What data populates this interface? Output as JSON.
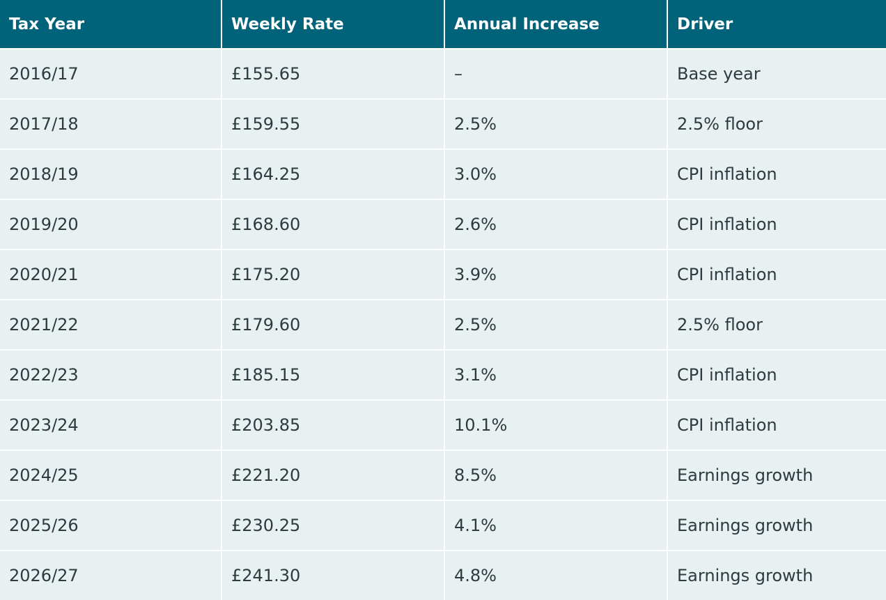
{
  "table": {
    "headers": [
      "Tax Year",
      "Weekly Rate",
      "Annual Increase",
      "Driver"
    ],
    "rows": [
      [
        "2016/17",
        "£155.65",
        "–",
        "Base year"
      ],
      [
        "2017/18",
        "£159.55",
        "2.5%",
        "2.5% floor"
      ],
      [
        "2018/19",
        "£164.25",
        "3.0%",
        "CPI inflation"
      ],
      [
        "2019/20",
        "£168.60",
        "2.6%",
        "CPI inflation"
      ],
      [
        "2020/21",
        "£175.20",
        "3.9%",
        "CPI inflation"
      ],
      [
        "2021/22",
        "£179.60",
        "2.5%",
        "2.5% floor"
      ],
      [
        "2022/23",
        "£185.15",
        "3.1%",
        "CPI inflation"
      ],
      [
        "2023/24",
        "£203.85",
        "10.1%",
        "CPI inflation"
      ],
      [
        "2024/25",
        "£221.20",
        "8.5%",
        "Earnings growth"
      ],
      [
        "2025/26",
        "£230.25",
        "4.1%",
        "Earnings growth"
      ],
      [
        "2026/27",
        "£241.30",
        "4.8%",
        "Earnings growth"
      ]
    ]
  }
}
